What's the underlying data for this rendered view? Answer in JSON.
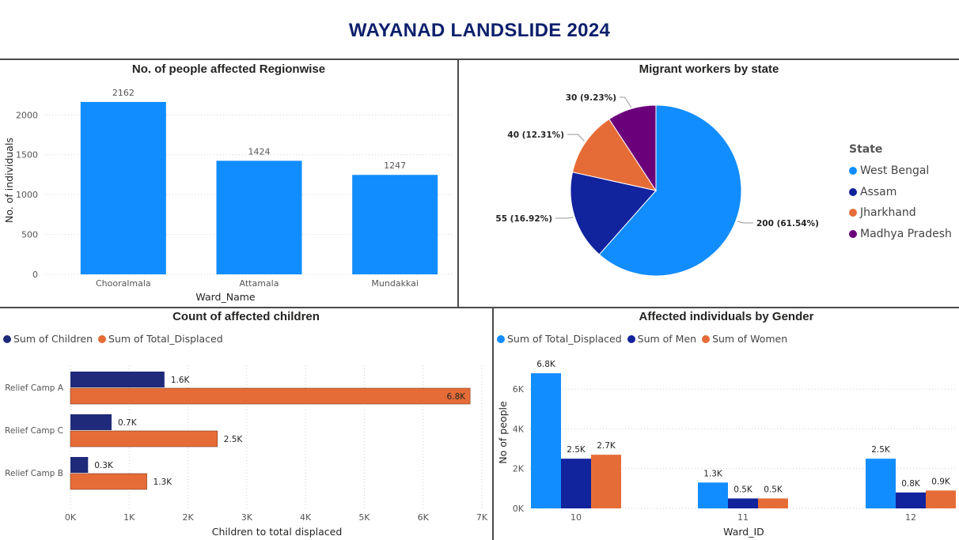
{
  "title": "WAYANAD LANDSLIDE 2024",
  "colors": {
    "blue": "#118dff",
    "navy": "#12239e",
    "orange": "#e66c37",
    "purple": "#6b007b"
  },
  "chart_data": [
    {
      "id": "regionwise",
      "type": "bar",
      "title": "No. of people affected Regionwise",
      "xlabel": "Ward_Name",
      "ylabel": "No. of individuals",
      "categories": [
        "Chooralmala",
        "Attamala",
        "Mundakkai"
      ],
      "values": [
        2162,
        1424,
        1247
      ],
      "yticks": [
        "0",
        "500",
        "1000",
        "1500",
        "2000"
      ],
      "ylim": [
        0,
        2300
      ],
      "grid": true
    },
    {
      "id": "migrants",
      "type": "pie",
      "title": "Migrant workers by state",
      "legend_title": "State",
      "legend_position": "right",
      "slices": [
        {
          "label": "West Bengal",
          "value": 200,
          "text": "200 (61.54%)",
          "color": "#118dff"
        },
        {
          "label": "Assam",
          "value": 55,
          "text": "55 (16.92%)",
          "color": "#12239e"
        },
        {
          "label": "Jharkhand",
          "value": 40,
          "text": "40 (12.31%)",
          "color": "#e66c37"
        },
        {
          "label": "Madhya Pradesh",
          "value": 30,
          "text": "30 (9.23%)",
          "color": "#6b007b"
        }
      ]
    },
    {
      "id": "children",
      "type": "bar",
      "orientation": "horizontal",
      "title": "Count of affected children",
      "xlabel": "Children to total displaced",
      "categories": [
        "Relief Camp A",
        "Relief Camp C",
        "Relief Camp B"
      ],
      "series": [
        {
          "name": "Sum of Children",
          "values": [
            1600,
            700,
            300
          ],
          "labels": [
            "1.6K",
            "0.7K",
            "0.3K"
          ],
          "color": "#1f2a7a"
        },
        {
          "name": "Sum of Total_Displaced",
          "values": [
            6800,
            2500,
            1300
          ],
          "labels": [
            "6.8K",
            "2.5K",
            "1.3K"
          ],
          "color": "#e66c37"
        }
      ],
      "xticks": [
        "0K",
        "1K",
        "2K",
        "3K",
        "4K",
        "5K",
        "6K",
        "7K"
      ],
      "xlim": [
        0,
        7000
      ],
      "legend_position": "top-left"
    },
    {
      "id": "gender",
      "type": "bar",
      "title": "Affected individuals by Gender",
      "xlabel": "Ward_ID",
      "ylabel": "No of people",
      "categories": [
        "10",
        "11",
        "12"
      ],
      "series": [
        {
          "name": "Sum of Total_Displaced",
          "values": [
            6800,
            1300,
            2500
          ],
          "labels": [
            "6.8K",
            "1.3K",
            "2.5K"
          ],
          "color": "#118dff"
        },
        {
          "name": "Sum of Men",
          "values": [
            2500,
            500,
            800
          ],
          "labels": [
            "2.5K",
            "0.5K",
            "0.8K"
          ],
          "color": "#12239e"
        },
        {
          "name": "Sum of Women",
          "values": [
            2700,
            500,
            900
          ],
          "labels": [
            "2.7K",
            "0.5K",
            "0.9K"
          ],
          "color": "#e66c37"
        }
      ],
      "yticks": [
        "0K",
        "2K",
        "4K",
        "6K"
      ],
      "ylim": [
        0,
        7400
      ],
      "legend_position": "top-left"
    }
  ]
}
